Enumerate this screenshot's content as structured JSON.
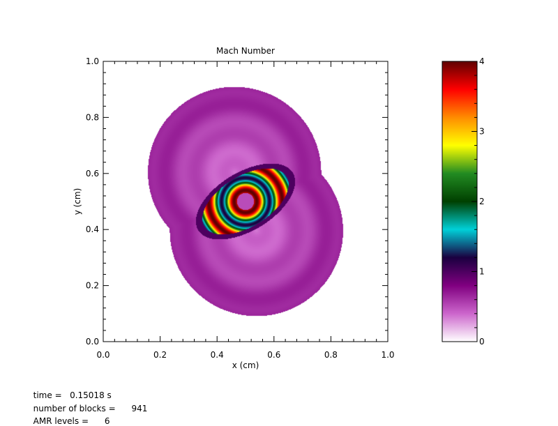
{
  "chart_data": {
    "type": "heatmap",
    "title": "Mach Number",
    "xlabel": "x (cm)",
    "ylabel": "y (cm)",
    "xlim": [
      0.0,
      1.0
    ],
    "ylim": [
      0.0,
      1.0
    ],
    "x_ticks": [
      "0.0",
      "0.2",
      "0.4",
      "0.6",
      "0.8",
      "1.0"
    ],
    "y_ticks": [
      "0.0",
      "0.2",
      "0.4",
      "0.6",
      "0.8",
      "1.0"
    ],
    "colorbar": {
      "range": [
        0,
        4
      ],
      "ticks": [
        "0",
        "1",
        "2",
        "3",
        "4"
      ],
      "colors": [
        "#ffffff",
        "#cc66cc",
        "#800080",
        "#1a0040",
        "#00d0d8",
        "#004000",
        "#228b22",
        "#ffff00",
        "#ff8c00",
        "#ff0000",
        "#600000"
      ]
    },
    "field": {
      "center": [
        0.5,
        0.5
      ],
      "blast_radius": 0.21,
      "blast_offset": 0.11
    }
  },
  "info": {
    "time_label": "time =",
    "time_value": "0.15018 s",
    "blocks_label": "number of blocks =",
    "blocks_value": "941",
    "amr_label": "AMR levels =",
    "amr_value": "6"
  }
}
